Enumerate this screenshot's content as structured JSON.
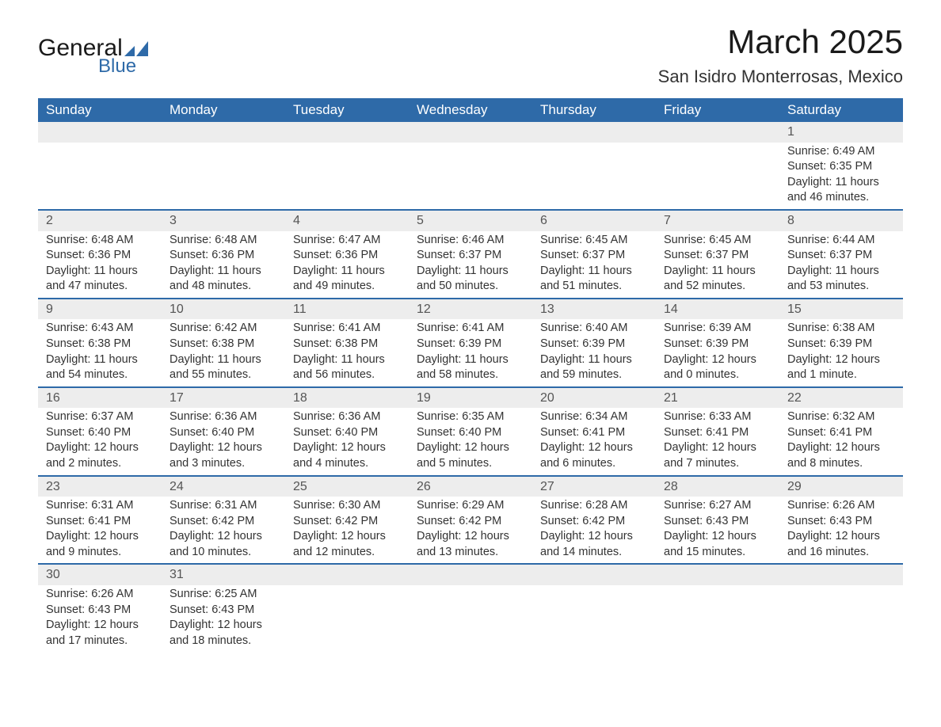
{
  "logo": {
    "word1": "General",
    "word2": "Blue",
    "shape_color": "#2e6aa8"
  },
  "title": "March 2025",
  "location": "San Isidro Monterrosas, Mexico",
  "colors": {
    "header_bg": "#2e6aa8",
    "header_text": "#ffffff",
    "daynum_bg": "#ededed",
    "row_border": "#2e6aa8",
    "text": "#333333"
  },
  "day_headers": [
    "Sunday",
    "Monday",
    "Tuesday",
    "Wednesday",
    "Thursday",
    "Friday",
    "Saturday"
  ],
  "weeks": [
    [
      null,
      null,
      null,
      null,
      null,
      null,
      {
        "n": "1",
        "sr": "6:49 AM",
        "ss": "6:35 PM",
        "dl": "11 hours and 46 minutes."
      }
    ],
    [
      {
        "n": "2",
        "sr": "6:48 AM",
        "ss": "6:36 PM",
        "dl": "11 hours and 47 minutes."
      },
      {
        "n": "3",
        "sr": "6:48 AM",
        "ss": "6:36 PM",
        "dl": "11 hours and 48 minutes."
      },
      {
        "n": "4",
        "sr": "6:47 AM",
        "ss": "6:36 PM",
        "dl": "11 hours and 49 minutes."
      },
      {
        "n": "5",
        "sr": "6:46 AM",
        "ss": "6:37 PM",
        "dl": "11 hours and 50 minutes."
      },
      {
        "n": "6",
        "sr": "6:45 AM",
        "ss": "6:37 PM",
        "dl": "11 hours and 51 minutes."
      },
      {
        "n": "7",
        "sr": "6:45 AM",
        "ss": "6:37 PM",
        "dl": "11 hours and 52 minutes."
      },
      {
        "n": "8",
        "sr": "6:44 AM",
        "ss": "6:37 PM",
        "dl": "11 hours and 53 minutes."
      }
    ],
    [
      {
        "n": "9",
        "sr": "6:43 AM",
        "ss": "6:38 PM",
        "dl": "11 hours and 54 minutes."
      },
      {
        "n": "10",
        "sr": "6:42 AM",
        "ss": "6:38 PM",
        "dl": "11 hours and 55 minutes."
      },
      {
        "n": "11",
        "sr": "6:41 AM",
        "ss": "6:38 PM",
        "dl": "11 hours and 56 minutes."
      },
      {
        "n": "12",
        "sr": "6:41 AM",
        "ss": "6:39 PM",
        "dl": "11 hours and 58 minutes."
      },
      {
        "n": "13",
        "sr": "6:40 AM",
        "ss": "6:39 PM",
        "dl": "11 hours and 59 minutes."
      },
      {
        "n": "14",
        "sr": "6:39 AM",
        "ss": "6:39 PM",
        "dl": "12 hours and 0 minutes."
      },
      {
        "n": "15",
        "sr": "6:38 AM",
        "ss": "6:39 PM",
        "dl": "12 hours and 1 minute."
      }
    ],
    [
      {
        "n": "16",
        "sr": "6:37 AM",
        "ss": "6:40 PM",
        "dl": "12 hours and 2 minutes."
      },
      {
        "n": "17",
        "sr": "6:36 AM",
        "ss": "6:40 PM",
        "dl": "12 hours and 3 minutes."
      },
      {
        "n": "18",
        "sr": "6:36 AM",
        "ss": "6:40 PM",
        "dl": "12 hours and 4 minutes."
      },
      {
        "n": "19",
        "sr": "6:35 AM",
        "ss": "6:40 PM",
        "dl": "12 hours and 5 minutes."
      },
      {
        "n": "20",
        "sr": "6:34 AM",
        "ss": "6:41 PM",
        "dl": "12 hours and 6 minutes."
      },
      {
        "n": "21",
        "sr": "6:33 AM",
        "ss": "6:41 PM",
        "dl": "12 hours and 7 minutes."
      },
      {
        "n": "22",
        "sr": "6:32 AM",
        "ss": "6:41 PM",
        "dl": "12 hours and 8 minutes."
      }
    ],
    [
      {
        "n": "23",
        "sr": "6:31 AM",
        "ss": "6:41 PM",
        "dl": "12 hours and 9 minutes."
      },
      {
        "n": "24",
        "sr": "6:31 AM",
        "ss": "6:42 PM",
        "dl": "12 hours and 10 minutes."
      },
      {
        "n": "25",
        "sr": "6:30 AM",
        "ss": "6:42 PM",
        "dl": "12 hours and 12 minutes."
      },
      {
        "n": "26",
        "sr": "6:29 AM",
        "ss": "6:42 PM",
        "dl": "12 hours and 13 minutes."
      },
      {
        "n": "27",
        "sr": "6:28 AM",
        "ss": "6:42 PM",
        "dl": "12 hours and 14 minutes."
      },
      {
        "n": "28",
        "sr": "6:27 AM",
        "ss": "6:43 PM",
        "dl": "12 hours and 15 minutes."
      },
      {
        "n": "29",
        "sr": "6:26 AM",
        "ss": "6:43 PM",
        "dl": "12 hours and 16 minutes."
      }
    ],
    [
      {
        "n": "30",
        "sr": "6:26 AM",
        "ss": "6:43 PM",
        "dl": "12 hours and 17 minutes."
      },
      {
        "n": "31",
        "sr": "6:25 AM",
        "ss": "6:43 PM",
        "dl": "12 hours and 18 minutes."
      },
      null,
      null,
      null,
      null,
      null
    ]
  ],
  "labels": {
    "sunrise": "Sunrise: ",
    "sunset": "Sunset: ",
    "daylight": "Daylight: "
  }
}
